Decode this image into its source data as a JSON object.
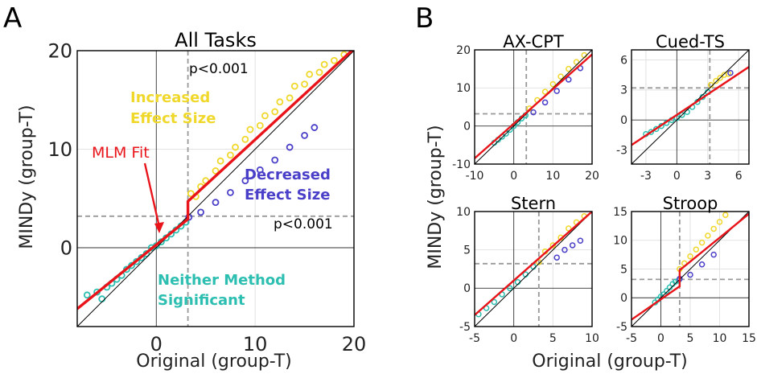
{
  "panel_labels": [
    "A",
    "B"
  ],
  "shared_labels": {
    "ylabel": "MINDy (group-T)",
    "xlabel": "Original (group-T)"
  },
  "colors": {
    "increased": "#f0d82a",
    "decreased": "#4a3fc8",
    "neither": "#2cbfb1",
    "fit": "#e8141a",
    "threshold": "#999999",
    "identity": "#000000"
  },
  "chart_data": [
    {
      "panel": "A",
      "type": "scatter",
      "title": "All Tasks",
      "xlabel": "Original (group-T)",
      "ylabel": "MINDy (group-T)",
      "xlim": [
        -8,
        20
      ],
      "ylim": [
        -8,
        20
      ],
      "xticks": [
        "0",
        "10",
        "20"
      ],
      "yticks": [
        "0",
        "10",
        "20"
      ],
      "threshold": 3.2,
      "annotations": {
        "p_top": "p<0.001",
        "p_right": "p<0.001",
        "increased": [
          "Increased",
          "Effect Size"
        ],
        "decreased": [
          "Decreased",
          "Effect Size"
        ],
        "neither": [
          "Neither Method",
          "Significant"
        ],
        "fit": "MLM Fit"
      },
      "series": [
        {
          "name": "Increased Effect Size",
          "x": [
            3.5,
            4.5,
            6,
            7.5,
            9,
            10.5,
            12,
            13.5,
            15,
            16.5,
            18,
            19,
            5,
            8,
            11,
            14,
            17,
            4,
            6.5,
            9.5,
            12.5,
            15.5
          ],
          "y": [
            5.5,
            6.2,
            7.8,
            9.4,
            11.0,
            12.4,
            13.8,
            15.2,
            16.6,
            17.8,
            19.0,
            19.6,
            6.8,
            10.2,
            13.4,
            16.4,
            18.6,
            5.2,
            8.8,
            12.0,
            14.8,
            17.6
          ]
        },
        {
          "name": "Decreased Effect Size",
          "x": [
            3.3,
            4.5,
            6.0,
            7.5,
            9.0,
            10.5,
            12.0,
            13.5,
            15.0,
            16.0
          ],
          "y": [
            3.1,
            3.6,
            4.6,
            5.6,
            6.8,
            7.9,
            8.9,
            10.2,
            11.4,
            12.2
          ]
        },
        {
          "name": "Neither Method Significant",
          "x": [
            -7,
            -6,
            -5,
            -4,
            -3,
            -2,
            -1,
            0,
            1,
            2,
            3,
            -5.5,
            -4.5,
            -3.5,
            -2.5,
            -1.5,
            -0.5,
            0.5,
            1.5,
            2.5
          ],
          "y": [
            -4.8,
            -4.5,
            -4.0,
            -3.2,
            -2.2,
            -1.4,
            -0.6,
            0.2,
            1.0,
            1.8,
            2.6,
            -5.2,
            -3.6,
            -2.8,
            -1.8,
            -1.0,
            0.0,
            0.6,
            1.4,
            2.2
          ]
        }
      ],
      "fit": {
        "x": [
          -8,
          3.2,
          3.2,
          20
        ],
        "y": [
          -6.2,
          2.9,
          4.7,
          20.2
        ]
      }
    },
    {
      "panel": "B",
      "type": "scatter",
      "title": "AX-CPT",
      "xlim": [
        -10,
        20
      ],
      "ylim": [
        -10,
        20
      ],
      "xticks": [
        "-10",
        "0",
        "10",
        "20"
      ],
      "yticks": [
        "-10",
        "0",
        "10",
        "20"
      ],
      "threshold": 3.2,
      "series": [
        {
          "name": "Increased Effect Size",
          "x": [
            4,
            6,
            8,
            10,
            12,
            14,
            16,
            18
          ],
          "y": [
            4.6,
            6.8,
            9.0,
            11.0,
            13.0,
            15.0,
            16.8,
            18.6
          ]
        },
        {
          "name": "Decreased Effect Size",
          "x": [
            5,
            8,
            11,
            14,
            17
          ],
          "y": [
            3.6,
            6.2,
            9.2,
            12.2,
            15.2
          ]
        },
        {
          "name": "Neither Method Significant",
          "x": [
            -5,
            -4,
            -3,
            -2,
            -1,
            0,
            1,
            2,
            3
          ],
          "y": [
            -4.4,
            -3.6,
            -2.8,
            -2.0,
            -1.0,
            0.0,
            1.0,
            2.0,
            2.8
          ]
        }
      ],
      "fit": {
        "x": [
          -10,
          20
        ],
        "y": [
          -8.5,
          18.8
        ]
      }
    },
    {
      "panel": "B",
      "type": "scatter",
      "title": "Cued-TS",
      "xlim": [
        -4.4,
        7
      ],
      "ylim": [
        -4.4,
        7
      ],
      "xticks": [
        "-3",
        "0",
        "3",
        "6"
      ],
      "yticks": [
        "-3",
        "0",
        "3",
        "6"
      ],
      "threshold": 3.2,
      "series": [
        {
          "name": "Increased Effect Size",
          "x": [
            3.3,
            3.8,
            4.2,
            4.6,
            5.0
          ],
          "y": [
            3.5,
            3.9,
            4.2,
            4.5,
            4.6
          ]
        },
        {
          "name": "Decreased Effect Size",
          "x": [
            5.2
          ],
          "y": [
            4.7
          ]
        },
        {
          "name": "Neither Method Significant",
          "x": [
            -3,
            -2.5,
            -2,
            -1.5,
            -1,
            -0.5,
            0,
            0.5,
            1,
            1.5,
            2,
            2.5,
            3
          ],
          "y": [
            -1.4,
            -1.2,
            -0.9,
            -0.6,
            -0.3,
            0.0,
            0.2,
            0.5,
            0.8,
            1.3,
            1.8,
            2.3,
            2.8
          ]
        }
      ],
      "fit": {
        "x": [
          -4.4,
          7
        ],
        "y": [
          -2.5,
          5.3
        ]
      }
    },
    {
      "panel": "B",
      "type": "scatter",
      "title": "Stern",
      "xlim": [
        -5,
        10
      ],
      "ylim": [
        -5,
        10
      ],
      "xticks": [
        "-5",
        "0",
        "5",
        "10"
      ],
      "yticks": [
        "-5",
        "0",
        "5",
        "10"
      ],
      "threshold": 3.2,
      "series": [
        {
          "name": "Increased Effect Size",
          "x": [
            3.2,
            4,
            5,
            6,
            7,
            8,
            9
          ],
          "y": [
            3.4,
            4.8,
            5.6,
            6.6,
            7.8,
            8.6,
            9.4
          ]
        },
        {
          "name": "Decreased Effect Size",
          "x": [
            5.5,
            6.5,
            7.5,
            8.5
          ],
          "y": [
            4.0,
            5.0,
            5.6,
            6.2
          ]
        },
        {
          "name": "Neither Method Significant",
          "x": [
            -4.5,
            -3.5,
            -2.5,
            -1.5,
            -0.5,
            0.5,
            1.5,
            2.5
          ],
          "y": [
            -3.4,
            -2.6,
            -1.8,
            -0.8,
            0.0,
            0.8,
            1.8,
            2.8
          ]
        }
      ],
      "fit": {
        "x": [
          -5,
          10
        ],
        "y": [
          -3.5,
          10
        ]
      }
    },
    {
      "panel": "B",
      "type": "scatter",
      "title": "Stroop",
      "xlim": [
        -5,
        15
      ],
      "ylim": [
        -5,
        15
      ],
      "xticks": [
        "-5",
        "0",
        "5",
        "10",
        "15"
      ],
      "yticks": [
        "-5",
        "0",
        "5",
        "10",
        "15"
      ],
      "threshold": 3.2,
      "series": [
        {
          "name": "Increased Effect Size",
          "x": [
            3.2,
            4,
            5,
            6,
            7,
            8,
            9,
            10,
            11
          ],
          "y": [
            5.0,
            6.0,
            7.2,
            8.4,
            9.6,
            10.8,
            12.0,
            13.2,
            14.4
          ]
        },
        {
          "name": "Decreased Effect Size",
          "x": [
            3.2,
            5,
            7,
            9
          ],
          "y": [
            3.3,
            4.0,
            5.8,
            7.5
          ]
        },
        {
          "name": "Neither Method Significant",
          "x": [
            -1,
            -0.5,
            0,
            0.5,
            1,
            1.5,
            2,
            2.5,
            3
          ],
          "y": [
            -0.8,
            -0.3,
            0.2,
            0.6,
            1.2,
            1.8,
            2.4,
            2.8,
            3.0
          ]
        }
      ],
      "fit": {
        "x": [
          -5,
          3.2,
          3.2,
          15
        ],
        "y": [
          -3.8,
          2.0,
          4.8,
          14.6
        ]
      }
    }
  ]
}
